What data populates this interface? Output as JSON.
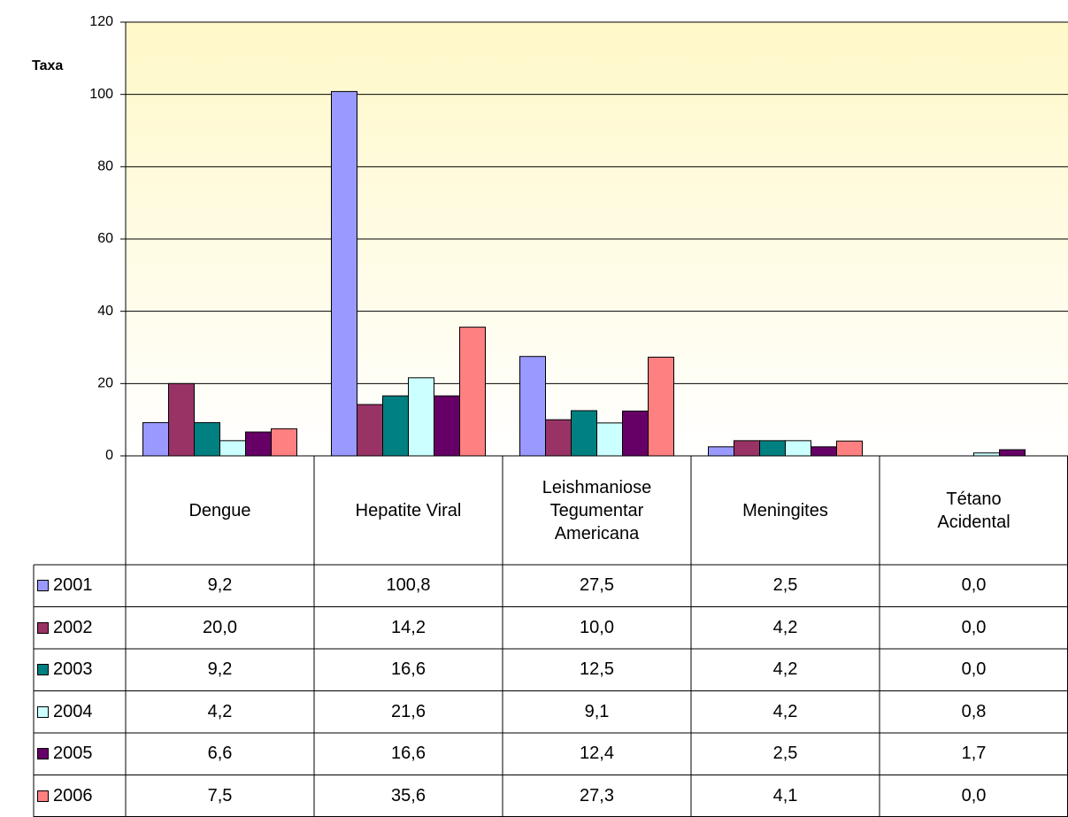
{
  "chart_data": {
    "type": "bar",
    "y_label": "Taxa",
    "categories": [
      "Dengue",
      "Hepatite Viral",
      "Leishmaniose\nTegumentar\nAmericana",
      "Meningites",
      "Tétano\nAcidental"
    ],
    "series": [
      {
        "name": "2001",
        "color": "#9999ff",
        "values": [
          9.2,
          100.8,
          27.5,
          2.5,
          0
        ],
        "value_labels": [
          "9,2",
          "100,8",
          "27,5",
          "2,5",
          "0,0"
        ]
      },
      {
        "name": "2002",
        "color": "#993366",
        "values": [
          20.0,
          14.2,
          10.0,
          4.2,
          0
        ],
        "value_labels": [
          "20,0",
          "14,2",
          "10,0",
          "4,2",
          "0,0"
        ]
      },
      {
        "name": "2003",
        "color": "#008080",
        "values": [
          9.2,
          16.6,
          12.5,
          4.2,
          0
        ],
        "value_labels": [
          "9,2",
          "16,6",
          "12,5",
          "4,2",
          "0,0"
        ]
      },
      {
        "name": "2004",
        "color": "#ccffff",
        "values": [
          4.2,
          21.6,
          9.1,
          4.2,
          0.8
        ],
        "value_labels": [
          "4,2",
          "21,6",
          "9,1",
          "4,2",
          "0,8"
        ]
      },
      {
        "name": "2005",
        "color": "#660066",
        "values": [
          6.6,
          16.6,
          12.4,
          2.5,
          1.7
        ],
        "value_labels": [
          "6,6",
          "16,6",
          "12,4",
          "2,5",
          "1,7"
        ]
      },
      {
        "name": "2006",
        "color": "#ff8080",
        "values": [
          7.5,
          35.6,
          27.3,
          4.1,
          0
        ],
        "value_labels": [
          "7,5",
          "35,6",
          "27,3",
          "4,1",
          "0,0"
        ]
      }
    ],
    "ylim": [
      0,
      120
    ],
    "yticks": [
      0,
      20,
      40,
      60,
      80,
      100,
      120
    ],
    "grid": true
  }
}
